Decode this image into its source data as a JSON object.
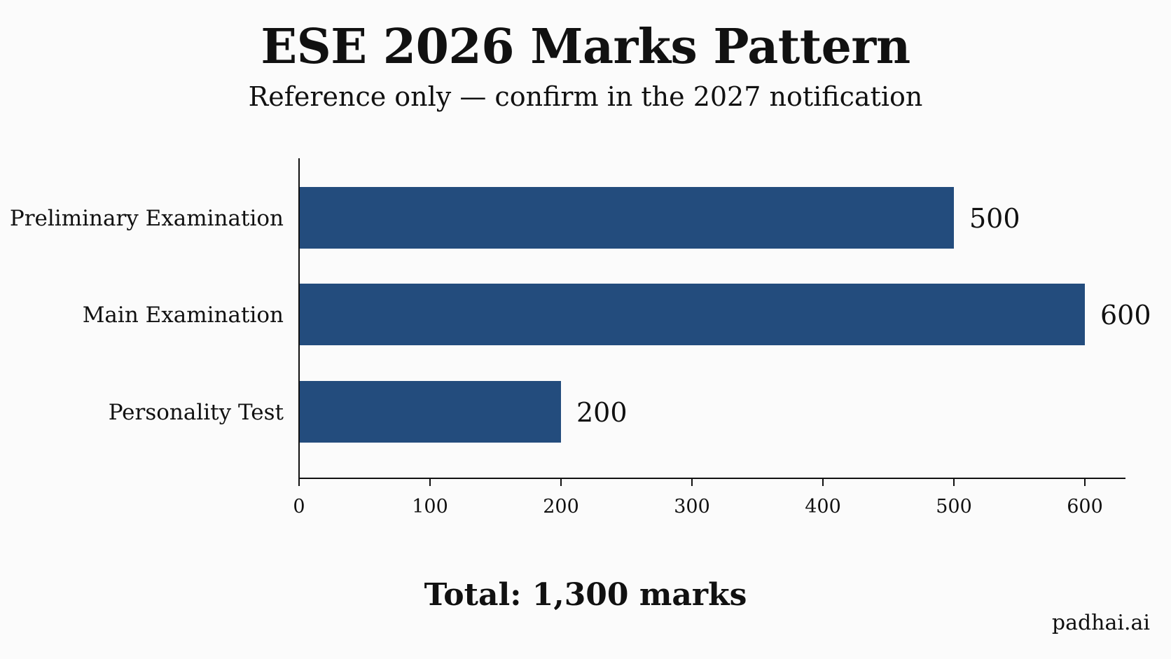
{
  "chart_data": {
    "type": "bar",
    "orientation": "horizontal",
    "title": "ESE 2026 Marks Pattern",
    "subtitle": "Reference only — confirm in the 2027 notification",
    "categories": [
      "Preliminary Examination",
      "Main Examination",
      "Personality Test"
    ],
    "values": [
      500,
      600,
      200
    ],
    "data_labels": [
      "500",
      "600",
      "200"
    ],
    "xlim": [
      0,
      630
    ],
    "x_ticks": [
      0,
      100,
      200,
      300,
      400,
      500,
      600
    ],
    "x_tick_labels": [
      "0",
      "100",
      "200",
      "300",
      "400",
      "500",
      "600"
    ],
    "bar_color": "#234c7d",
    "grid": false,
    "legend": "none"
  },
  "footer": {
    "total_text": "Total: 1,300 marks",
    "watermark": "padhai.ai"
  }
}
